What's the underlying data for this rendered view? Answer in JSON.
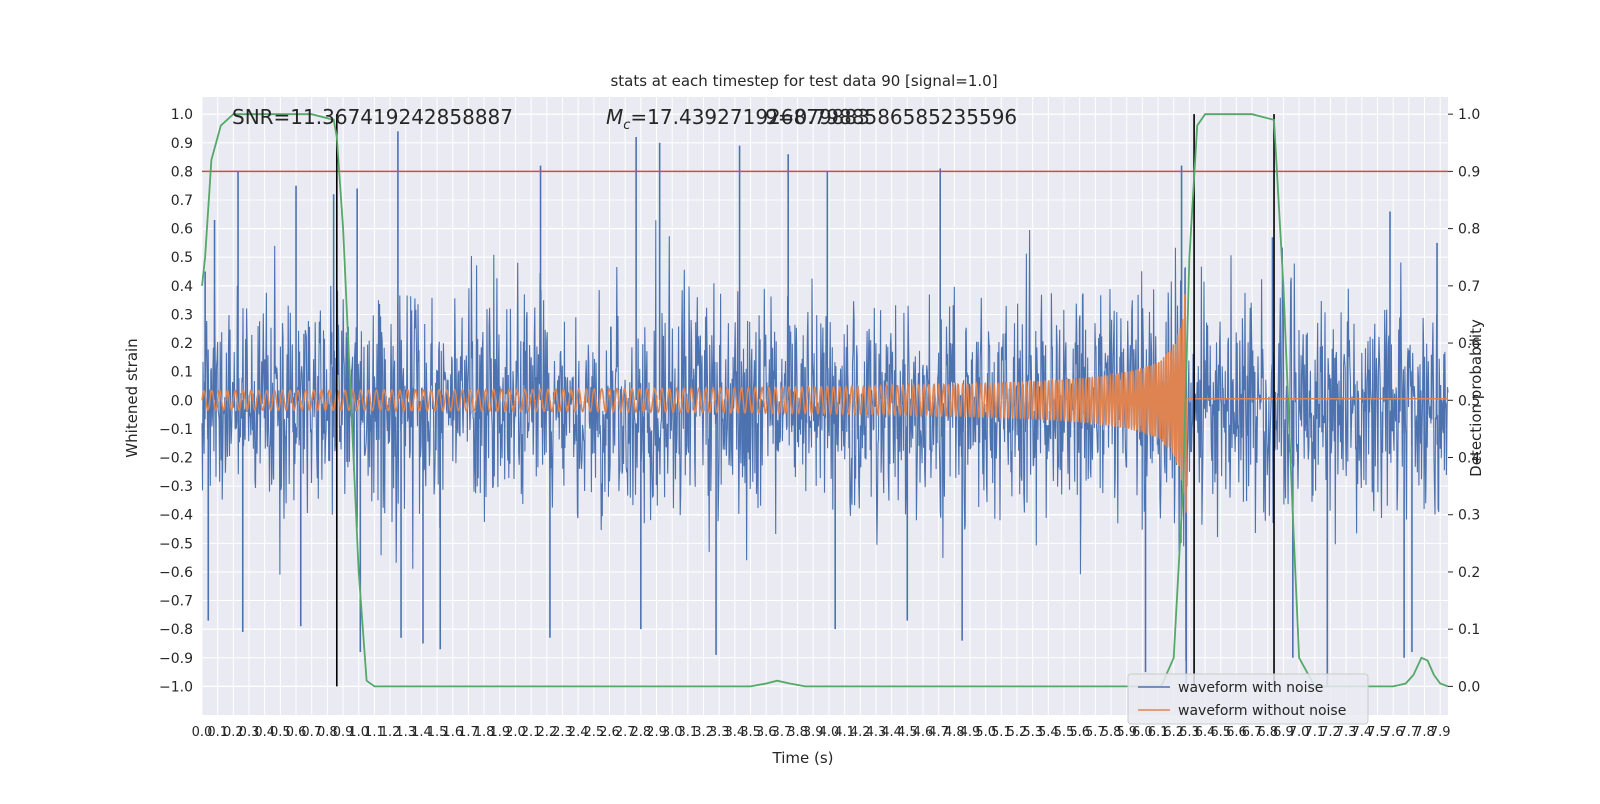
{
  "chart_data": {
    "type": "line",
    "title": "stats at each timestep for test data 90 [signal=1.0]",
    "xlabel": "Time (s)",
    "ylabel": "Whitened strain",
    "y2label": "Detection probability",
    "xlim": [
      0,
      7.95
    ],
    "ylim": [
      -1.1,
      1.06
    ],
    "y2lim": [
      -0.05,
      1.03
    ],
    "x_ticks": [
      "0.0",
      "0.1",
      "0.2",
      "0.3",
      "0.4",
      "0.5",
      "0.6",
      "0.7",
      "0.8",
      "0.9",
      "1.0",
      "1.1",
      "1.2",
      "1.3",
      "1.4",
      "1.5",
      "1.6",
      "1.7",
      "1.8",
      "1.9",
      "2.0",
      "2.1",
      "2.2",
      "2.3",
      "2.4",
      "2.5",
      "2.6",
      "2.7",
      "2.8",
      "2.9",
      "3.0",
      "3.1",
      "3.2",
      "3.3",
      "3.4",
      "3.5",
      "3.6",
      "3.7",
      "3.8",
      "3.9",
      "4.0",
      "4.1",
      "4.2",
      "4.3",
      "4.4",
      "4.5",
      "4.6",
      "4.7",
      "4.8",
      "4.9",
      "5.0",
      "5.1",
      "5.2",
      "5.3",
      "5.4",
      "5.5",
      "5.6",
      "5.7",
      "5.8",
      "5.9",
      "6.0",
      "6.1",
      "6.2",
      "6.3",
      "6.4",
      "6.5",
      "6.6",
      "6.7",
      "6.8",
      "6.9",
      "7.0",
      "7.1",
      "7.2",
      "7.3",
      "7.4",
      "7.5",
      "7.6",
      "7.7",
      "7.8",
      "7.9"
    ],
    "y_ticks": [
      "1.0",
      "0.9",
      "0.8",
      "0.7",
      "0.6",
      "0.5",
      "0.4",
      "0.3",
      "0.2",
      "0.1",
      "0.0",
      "−0.1",
      "−0.2",
      "−0.3",
      "−0.4",
      "−0.5",
      "−0.6",
      "−0.7",
      "−0.8",
      "−0.9",
      "−1.0"
    ],
    "y2_ticks": [
      "1.0",
      "0.9",
      "0.8",
      "0.7",
      "0.6",
      "0.5",
      "0.4",
      "0.3",
      "0.2",
      "0.1",
      "0.0"
    ],
    "annotations": {
      "snr": "SNR=11.367419242858887",
      "mc_prefix": "M",
      "mc_sub": "c",
      "mc_value": "=17.439271926879883",
      "overlap": "9=0.7988586585235596"
    },
    "threshold": 0.9,
    "event_lines_x": [
      0.86,
      6.33,
      6.84
    ],
    "grid": true,
    "legend_position": "lower-right",
    "series": [
      {
        "name": "waveform with noise",
        "color": "#4c72b0",
        "envelope": {
          "upper_typical": 0.38,
          "lower_typical": -0.42
        },
        "peaks": [
          [
            0.02,
            0.45
          ],
          [
            0.04,
            -0.77
          ],
          [
            0.08,
            0.63
          ],
          [
            0.23,
            0.8
          ],
          [
            0.26,
            -0.81
          ],
          [
            0.6,
            0.75
          ],
          [
            0.63,
            -0.79
          ],
          [
            0.84,
            0.72
          ],
          [
            0.99,
            0.74
          ],
          [
            1.01,
            -0.88
          ],
          [
            1.25,
            0.94
          ],
          [
            1.27,
            -0.83
          ],
          [
            1.41,
            -0.85
          ],
          [
            1.52,
            -0.87
          ],
          [
            2.16,
            0.82
          ],
          [
            2.22,
            -0.83
          ],
          [
            2.77,
            0.92
          ],
          [
            2.8,
            -0.8
          ],
          [
            2.92,
            0.9
          ],
          [
            3.28,
            -0.89
          ],
          [
            3.43,
            0.89
          ],
          [
            3.74,
            0.86
          ],
          [
            3.99,
            0.8
          ],
          [
            4.04,
            -0.8
          ],
          [
            4.5,
            -0.77
          ],
          [
            4.71,
            0.81
          ],
          [
            4.85,
            -0.84
          ],
          [
            6.02,
            -0.95
          ],
          [
            6.25,
            0.82
          ],
          [
            6.28,
            -0.99
          ],
          [
            6.83,
            0.57
          ],
          [
            6.96,
            -0.9
          ],
          [
            7.18,
            -1.0
          ],
          [
            7.58,
            0.66
          ],
          [
            7.67,
            -0.9
          ],
          [
            7.72,
            -0.88
          ],
          [
            7.88,
            0.55
          ]
        ]
      },
      {
        "name": "waveform without noise",
        "color": "#dd8452",
        "chirp": {
          "start_amplitude": 0.015,
          "peak_amplitude": 0.46,
          "merger_time": 6.28,
          "start_frequency_hz": 20,
          "end_frequency_hz": 70
        }
      },
      {
        "name": "detection probability",
        "color": "#55a868",
        "x": [
          0.0,
          0.02,
          0.06,
          0.12,
          0.2,
          0.35,
          0.5,
          0.7,
          0.84,
          0.86,
          0.9,
          0.95,
          1.0,
          1.05,
          1.1,
          1.5,
          2.0,
          3.0,
          3.5,
          3.6,
          3.67,
          3.75,
          3.85,
          4.0,
          5.0,
          6.0,
          6.12,
          6.2,
          6.26,
          6.3,
          6.35,
          6.4,
          6.5,
          6.7,
          6.84,
          6.9,
          6.96,
          7.0,
          7.1,
          7.5,
          7.6,
          7.68,
          7.73,
          7.78,
          7.82,
          7.86,
          7.9,
          7.95
        ],
        "y": [
          0.7,
          0.75,
          0.92,
          0.98,
          1.0,
          1.0,
          1.0,
          1.0,
          0.99,
          0.96,
          0.8,
          0.5,
          0.2,
          0.01,
          0.0,
          0.0,
          0.0,
          0.0,
          0.0,
          0.005,
          0.01,
          0.005,
          0.0,
          0.0,
          0.0,
          0.0,
          0.0,
          0.05,
          0.35,
          0.75,
          0.98,
          1.0,
          1.0,
          1.0,
          0.99,
          0.7,
          0.3,
          0.05,
          0.0,
          0.0,
          0.0,
          0.005,
          0.02,
          0.05,
          0.045,
          0.02,
          0.005,
          0.0
        ]
      }
    ]
  }
}
